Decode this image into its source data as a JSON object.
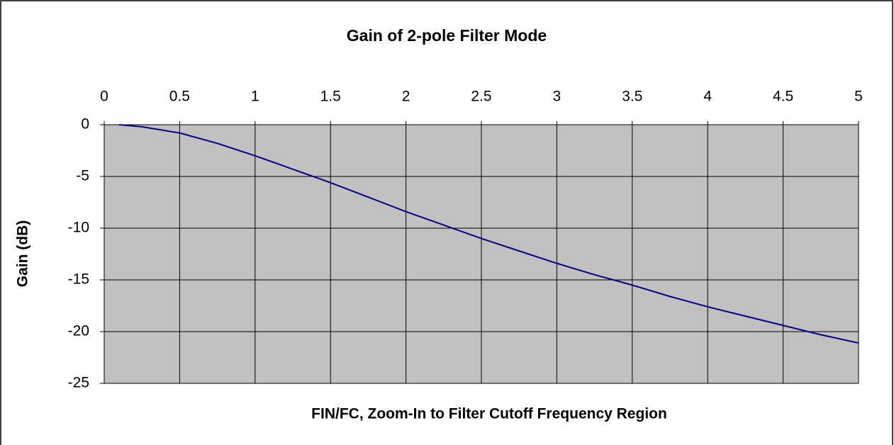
{
  "chart_data": {
    "type": "line",
    "title": "Gain of 2-pole Filter Mode",
    "x_label": "FIN/FC, Zoom-In to Filter Cutoff Frequency Region",
    "y_label": "Gain (dB)",
    "x": [
      0.1,
      0.25,
      0.5,
      0.75,
      1,
      1.25,
      1.5,
      1.75,
      2,
      2.25,
      2.5,
      2.75,
      3,
      3.25,
      3.5,
      3.75,
      4,
      4.25,
      4.5,
      4.75,
      5
    ],
    "series": [
      {
        "name": "Gain",
        "color": "#000080",
        "values": [
          0,
          -0.2,
          -0.8,
          -1.8,
          -3,
          -4.3,
          -5.6,
          -7.0,
          -8.4,
          -9.7,
          -11,
          -12.2,
          -13.4,
          -14.5,
          -15.5,
          -16.6,
          -17.6,
          -18.5,
          -19.4,
          -20.3,
          -21.1
        ]
      }
    ],
    "xlim": [
      0,
      5
    ],
    "xticks": [
      0,
      0.5,
      1,
      1.5,
      2,
      2.5,
      3,
      3.5,
      4,
      4.5,
      5
    ],
    "ylim": [
      -25,
      0
    ],
    "yticks": [
      0,
      -5,
      -10,
      -15,
      -20,
      -25
    ],
    "grid": true,
    "plot_background": "#c0c0c0"
  }
}
